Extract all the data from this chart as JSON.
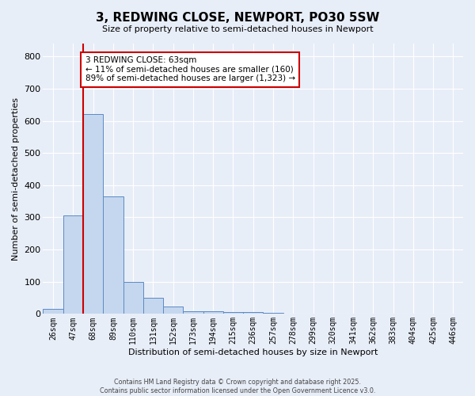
{
  "title": "3, REDWING CLOSE, NEWPORT, PO30 5SW",
  "subtitle": "Size of property relative to semi-detached houses in Newport",
  "xlabel": "Distribution of semi-detached houses by size in Newport",
  "ylabel": "Number of semi-detached properties",
  "bin_labels": [
    "26sqm",
    "47sqm",
    "68sqm",
    "89sqm",
    "110sqm",
    "131sqm",
    "152sqm",
    "173sqm",
    "194sqm",
    "215sqm",
    "236sqm",
    "257sqm",
    "278sqm",
    "299sqm",
    "320sqm",
    "341sqm",
    "362sqm",
    "383sqm",
    "404sqm",
    "425sqm",
    "446sqm"
  ],
  "bar_heights": [
    15,
    305,
    620,
    365,
    100,
    50,
    22,
    9,
    9,
    7,
    5,
    3,
    2,
    2,
    1,
    1,
    1,
    1,
    1,
    1,
    1
  ],
  "bar_color": "#c5d7ee",
  "bar_edge_color": "#5b8ac5",
  "bg_color": "#e8eef8",
  "grid_color": "#ffffff",
  "redline_x": 1.5,
  "annotation_text": "3 REDWING CLOSE: 63sqm\n← 11% of semi-detached houses are smaller (160)\n89% of semi-detached houses are larger (1,323) →",
  "annotation_box_color": "#ffffff",
  "annotation_box_edge_color": "#cc0000",
  "redline_color": "#cc0000",
  "ylim": [
    0,
    840
  ],
  "yticks": [
    0,
    100,
    200,
    300,
    400,
    500,
    600,
    700,
    800
  ],
  "footer1": "Contains HM Land Registry data © Crown copyright and database right 2025.",
  "footer2": "Contains public sector information licensed under the Open Government Licence v3.0."
}
